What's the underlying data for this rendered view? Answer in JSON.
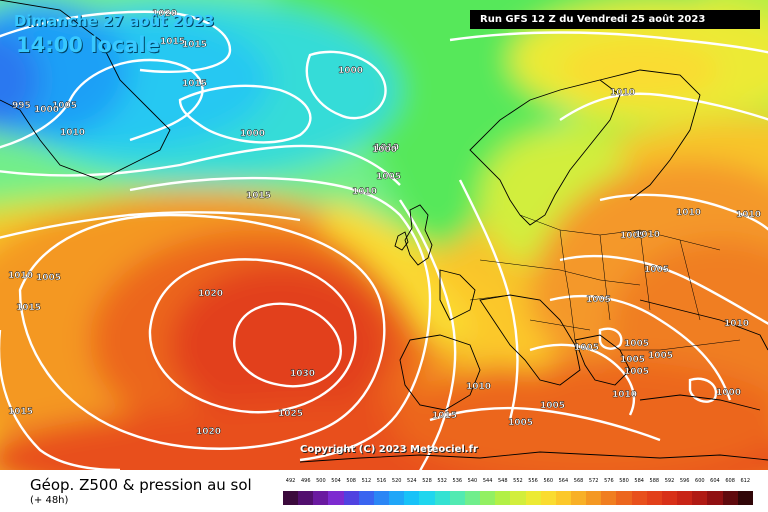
{
  "header": {
    "date": "Dimanche 27 août 2023",
    "time": "14:00 locale",
    "run": "Run GFS 12 Z du Vendredi 25 août 2023"
  },
  "footer": {
    "title": "Géop. Z500 & pression au sol",
    "subtitle": "(+ 48h)",
    "copyright": "Copyright (C) 2023 Meteociel.fr"
  },
  "scale": {
    "values": [
      "492",
      "496",
      "500",
      "504",
      "508",
      "512",
      "516",
      "520",
      "524",
      "528",
      "532",
      "536",
      "540",
      "544",
      "548",
      "552",
      "556",
      "560",
      "564",
      "568",
      "572",
      "576",
      "580",
      "584",
      "588",
      "592",
      "596",
      "600",
      "604",
      "608",
      "612"
    ],
    "colors": [
      "#3b0a3c",
      "#520f6e",
      "#6a19a0",
      "#7d2bd0",
      "#5042e0",
      "#3a64f0",
      "#2b86f5",
      "#20a6f8",
      "#18c2f8",
      "#1fd6ee",
      "#34e2d2",
      "#52eab2",
      "#70ee8c",
      "#92f062",
      "#b2f046",
      "#d2ee3c",
      "#ecea34",
      "#fadc30",
      "#fcc82a",
      "#f8b026",
      "#f49822",
      "#f07e20",
      "#ec661e",
      "#e8501c",
      "#e2401a",
      "#d83018",
      "#c82416",
      "#b01a14",
      "#901012",
      "#600a0e",
      "#300608"
    ]
  },
  "pressure_labels": [
    "1020",
    "1015",
    "1015",
    "1005",
    "1000",
    "995",
    "1010",
    "1015",
    "1000",
    "1000",
    "1010",
    "1000",
    "1005",
    "1010",
    "1015",
    "1010",
    "1005",
    "1010",
    "1005",
    "1005",
    "1010",
    "1010",
    "1005",
    "1020",
    "1015",
    "1005",
    "1010",
    "1030",
    "1005",
    "1005",
    "1005",
    "1005",
    "1010",
    "1010",
    "1000",
    "1010",
    "1005",
    "1025",
    "1015",
    "1020",
    "1005",
    "1015"
  ]
}
